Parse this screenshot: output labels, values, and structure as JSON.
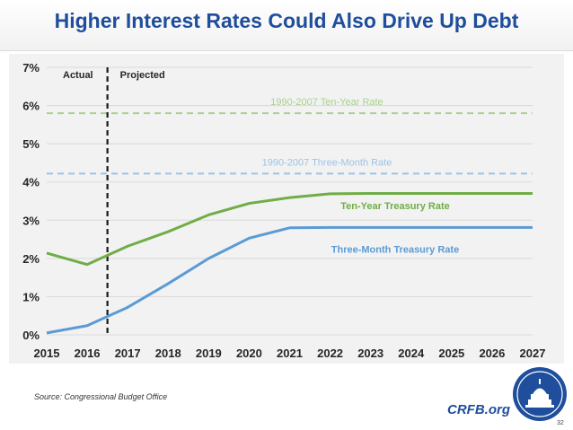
{
  "title": "Higher Interest Rates Could Also Drive Up Debt",
  "source": "Source: Congressional Budget Office",
  "brand": "CRFB.org",
  "page_number": "32",
  "chart_data": {
    "type": "line",
    "x": [
      2015,
      2016,
      2017,
      2018,
      2019,
      2020,
      2021,
      2022,
      2023,
      2024,
      2025,
      2026,
      2027
    ],
    "x_tick_labels": [
      "2015",
      "2016",
      "2017",
      "2018",
      "2019",
      "2020",
      "2021",
      "2022",
      "2023",
      "2024",
      "2025",
      "2026",
      "2027"
    ],
    "y_tick_labels": [
      "0%",
      "1%",
      "2%",
      "3%",
      "4%",
      "5%",
      "6%",
      "7%"
    ],
    "y_ticks": [
      0,
      1,
      2,
      3,
      4,
      5,
      6,
      7
    ],
    "ylim": [
      0,
      7
    ],
    "xlim": [
      2015,
      2027
    ],
    "grid": "horizontal",
    "series": [
      {
        "name": "Ten-Year Treasury Rate",
        "color": "#70ad47",
        "values": [
          2.14,
          1.84,
          2.32,
          2.7,
          3.14,
          3.44,
          3.59,
          3.69,
          3.7,
          3.7,
          3.7,
          3.7,
          3.7
        ]
      },
      {
        "name": "Three-Month Treasury Rate",
        "color": "#5b9bd5",
        "values": [
          0.05,
          0.24,
          0.72,
          1.34,
          2.0,
          2.53,
          2.8,
          2.81,
          2.81,
          2.81,
          2.81,
          2.81,
          2.81
        ]
      }
    ],
    "reference_lines": [
      {
        "label": "1990-2007 Ten-Year Rate",
        "value": 5.8,
        "color": "#a9d18e"
      },
      {
        "label": "1990-2007 Three-Month Rate",
        "value": 4.22,
        "color": "#9dc3e6"
      }
    ],
    "divider": {
      "x": 2016.5,
      "left_label": "Actual",
      "right_label": "Projected"
    }
  }
}
